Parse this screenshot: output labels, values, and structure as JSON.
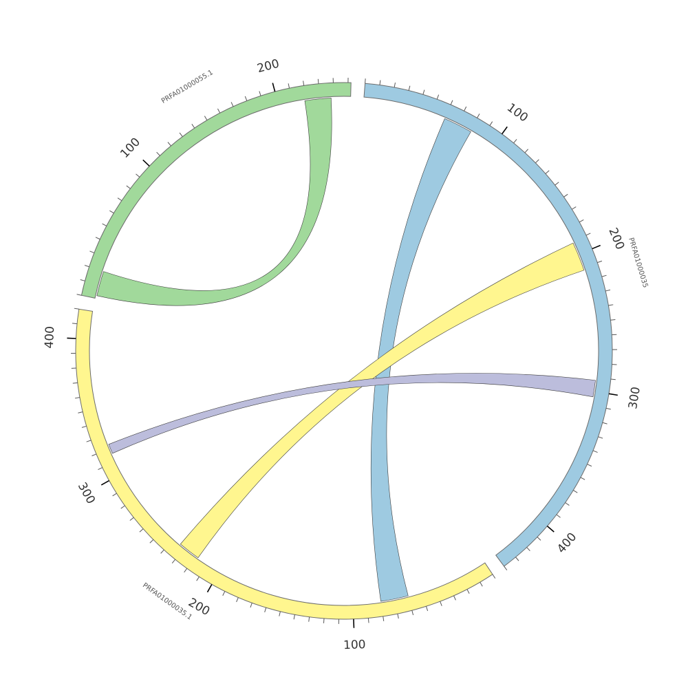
{
  "segments": [
    {
      "id": "blue",
      "name": "PRFA01000035",
      "color": "#9ecae1",
      "length": 440,
      "major_ticks": [
        100,
        200,
        300,
        400
      ],
      "major_labels": [
        "100",
        "200",
        "300",
        "400"
      ]
    },
    {
      "id": "yellow",
      "name": "PRFA01000035.1",
      "color": "#fff68f",
      "length": 420,
      "major_ticks": [
        100,
        200,
        300,
        400
      ],
      "major_labels": [
        "100",
        "200",
        "300",
        "400"
      ]
    },
    {
      "id": "green",
      "name": "PRFA01000055.1",
      "color": "#a1d99b",
      "length": 252,
      "major_ticks": [
        100,
        200
      ],
      "major_labels": [
        "100",
        "200"
      ]
    }
  ],
  "links": [
    {
      "color": "#a1d99b",
      "from": {
        "segment": "green",
        "start": 2,
        "end": 20
      },
      "to": {
        "segment": "green",
        "start": 219,
        "end": 238
      }
    },
    {
      "color": "#9ecae1",
      "from": {
        "segment": "blue",
        "start": 60,
        "end": 81
      },
      "to": {
        "segment": "yellow",
        "start": 60,
        "end": 80
      }
    },
    {
      "color": "#fff68f",
      "from": {
        "segment": "blue",
        "start": 191,
        "end": 212
      },
      "to": {
        "segment": "yellow",
        "start": 218,
        "end": 234
      }
    },
    {
      "color": "#bcbddc",
      "from": {
        "segment": "blue",
        "start": 292,
        "end": 304
      },
      "to": {
        "segment": "yellow",
        "start": 316,
        "end": 323
      }
    }
  ]
}
